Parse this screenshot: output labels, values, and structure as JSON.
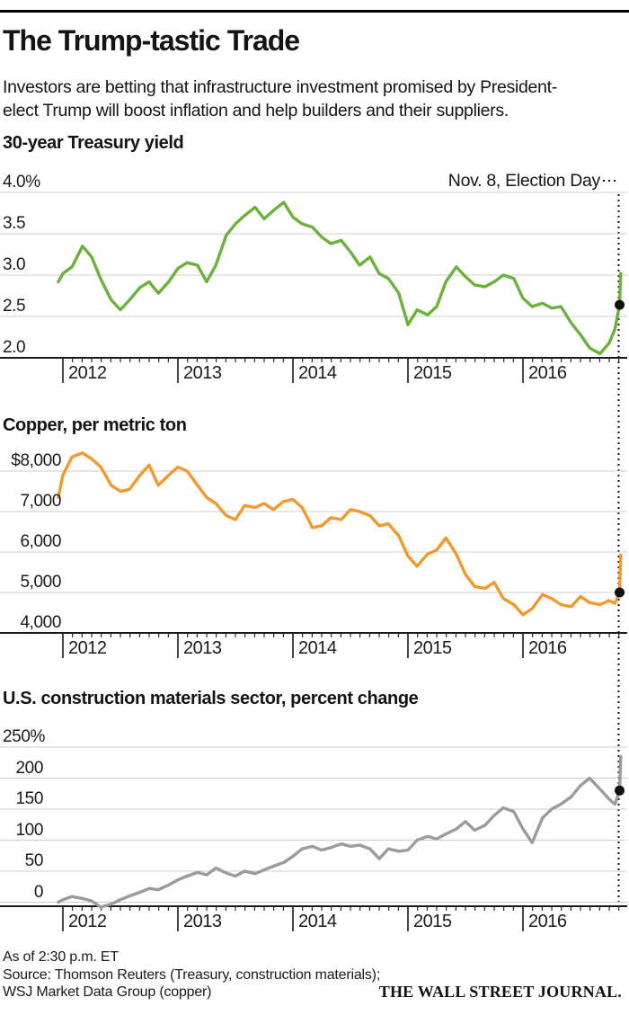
{
  "header": {
    "title": "The Trump-tastic Trade",
    "subtitle_line1": "Investors are betting that infrastructure investment promised by President-",
    "subtitle_line2": "elect Trump will boost inflation and help builders and their suppliers."
  },
  "annotation": {
    "election_label": "Nov. 8, Election Day"
  },
  "footer": {
    "as_of": "As of 2:30 p.m. ET",
    "source_line1": "Source: Thomson Reuters (Treasury, construction materials);",
    "source_line2": "WSJ Market Data Group (copper)",
    "brand": "THE WALL STREET JOURNAL."
  },
  "colors": {
    "treasury_line": "#6bb23c",
    "copper_line": "#f2982d",
    "construction_line": "#9b9b9b",
    "gridline": "#cccccc",
    "axis": "#1a1a1a",
    "dot": "#111111",
    "election_line": "#111111"
  },
  "chart_data": [
    {
      "type": "line",
      "title": "30-year Treasury yield",
      "unit": "percent",
      "color": "#6bb23c",
      "grid": true,
      "ylim": [
        2.0,
        4.0
      ],
      "y_tick_labels": [
        "4.0%",
        "3.5",
        "3.0",
        "2.5",
        "2.0"
      ],
      "y_tick_values": [
        4.0,
        3.5,
        3.0,
        2.5,
        2.0
      ],
      "x_tick_labels": [
        "2012",
        "2013",
        "2014",
        "2015",
        "2016"
      ],
      "x_tick_values": [
        2012,
        2013,
        2014,
        2015,
        2016
      ],
      "x": [
        2011.96,
        2012,
        2012.08,
        2012.17,
        2012.25,
        2012.33,
        2012.42,
        2012.5,
        2012.58,
        2012.67,
        2012.75,
        2012.83,
        2012.92,
        2013,
        2013.08,
        2013.17,
        2013.25,
        2013.33,
        2013.42,
        2013.5,
        2013.58,
        2013.67,
        2013.75,
        2013.83,
        2013.92,
        2014,
        2014.08,
        2014.17,
        2014.25,
        2014.33,
        2014.42,
        2014.5,
        2014.58,
        2014.67,
        2014.75,
        2014.83,
        2014.92,
        2015,
        2015.08,
        2015.17,
        2015.25,
        2015.33,
        2015.42,
        2015.5,
        2015.58,
        2015.67,
        2015.75,
        2015.83,
        2015.92,
        2016,
        2016.08,
        2016.17,
        2016.25,
        2016.33,
        2016.42,
        2016.5,
        2016.58,
        2016.67,
        2016.75,
        2016.8,
        2016.84,
        2016.85
      ],
      "y": [
        2.92,
        3.02,
        3.1,
        3.35,
        3.22,
        2.95,
        2.7,
        2.58,
        2.7,
        2.85,
        2.92,
        2.78,
        2.92,
        3.08,
        3.15,
        3.12,
        2.92,
        3.12,
        3.48,
        3.62,
        3.72,
        3.82,
        3.68,
        3.78,
        3.88,
        3.7,
        3.62,
        3.58,
        3.46,
        3.38,
        3.42,
        3.28,
        3.12,
        3.22,
        3.02,
        2.96,
        2.78,
        2.4,
        2.58,
        2.52,
        2.62,
        2.92,
        3.1,
        2.98,
        2.88,
        2.86,
        2.92,
        3.0,
        2.96,
        2.72,
        2.62,
        2.66,
        2.6,
        2.62,
        2.42,
        2.28,
        2.12,
        2.05,
        2.18,
        2.35,
        2.64,
        3.02
      ],
      "election_day_point": {
        "x": 2016.84,
        "y": 2.64
      }
    },
    {
      "type": "line",
      "title": "Copper, per metric ton",
      "unit": "US dollars",
      "color": "#f2982d",
      "grid": true,
      "ylim": [
        4000,
        8000
      ],
      "y_tick_labels": [
        "$8,000",
        "7,000",
        "6,000",
        "5,000",
        "4,000"
      ],
      "y_tick_values": [
        8000,
        7000,
        6000,
        5000,
        4000
      ],
      "x_tick_labels": [
        "2012",
        "2013",
        "2014",
        "2015",
        "2016"
      ],
      "x_tick_values": [
        2012,
        2013,
        2014,
        2015,
        2016
      ],
      "x": [
        2011.96,
        2012,
        2012.08,
        2012.17,
        2012.25,
        2012.33,
        2012.42,
        2012.5,
        2012.58,
        2012.67,
        2012.75,
        2012.83,
        2012.92,
        2013,
        2013.08,
        2013.17,
        2013.25,
        2013.33,
        2013.42,
        2013.5,
        2013.58,
        2013.67,
        2013.75,
        2013.83,
        2013.92,
        2014,
        2014.08,
        2014.17,
        2014.25,
        2014.33,
        2014.42,
        2014.5,
        2014.58,
        2014.67,
        2014.75,
        2014.83,
        2014.92,
        2015,
        2015.08,
        2015.17,
        2015.25,
        2015.33,
        2015.42,
        2015.5,
        2015.58,
        2015.67,
        2015.75,
        2015.83,
        2015.92,
        2016,
        2016.08,
        2016.17,
        2016.25,
        2016.33,
        2016.42,
        2016.5,
        2016.58,
        2016.67,
        2016.75,
        2016.8,
        2016.84,
        2016.85
      ],
      "y": [
        7350,
        7900,
        8350,
        8450,
        8300,
        8100,
        7650,
        7500,
        7550,
        7900,
        8150,
        7650,
        7900,
        8100,
        8000,
        7650,
        7350,
        7200,
        6900,
        6800,
        7150,
        7100,
        7200,
        7050,
        7250,
        7300,
        7100,
        6600,
        6650,
        6850,
        6800,
        7050,
        7000,
        6900,
        6650,
        6700,
        6400,
        5900,
        5650,
        5950,
        6050,
        6350,
        5950,
        5450,
        5150,
        5100,
        5250,
        4850,
        4700,
        4450,
        4600,
        4950,
        4850,
        4700,
        4650,
        4900,
        4750,
        4700,
        4800,
        4730,
        5000,
        5920
      ],
      "election_day_point": {
        "x": 2016.84,
        "y": 5000
      }
    },
    {
      "type": "line",
      "title": "U.S. construction materials sector, percent change",
      "unit": "percent change",
      "color": "#9b9b9b",
      "grid": true,
      "ylim": [
        -10,
        250
      ],
      "y_tick_labels": [
        "250%",
        "200",
        "150",
        "100",
        "50",
        "0"
      ],
      "y_tick_values": [
        250,
        200,
        150,
        100,
        50,
        0
      ],
      "x_tick_labels": [
        "2012",
        "2013",
        "2014",
        "2015",
        "2016"
      ],
      "x_tick_values": [
        2012,
        2013,
        2014,
        2015,
        2016
      ],
      "x": [
        2011.96,
        2012,
        2012.08,
        2012.17,
        2012.25,
        2012.33,
        2012.42,
        2012.5,
        2012.58,
        2012.67,
        2012.75,
        2012.83,
        2012.92,
        2013,
        2013.08,
        2013.17,
        2013.25,
        2013.33,
        2013.42,
        2013.5,
        2013.58,
        2013.67,
        2013.75,
        2013.83,
        2013.92,
        2014,
        2014.08,
        2014.17,
        2014.25,
        2014.33,
        2014.42,
        2014.5,
        2014.58,
        2014.67,
        2014.75,
        2014.83,
        2014.92,
        2015,
        2015.08,
        2015.17,
        2015.25,
        2015.33,
        2015.42,
        2015.5,
        2015.58,
        2015.67,
        2015.75,
        2015.83,
        2015.92,
        2016,
        2016.08,
        2016.17,
        2016.25,
        2016.33,
        2016.42,
        2016.5,
        2016.58,
        2016.67,
        2016.75,
        2016.8,
        2016.84,
        2016.85
      ],
      "y": [
        0,
        4,
        9,
        6,
        2,
        -8,
        -3,
        4,
        10,
        16,
        22,
        20,
        28,
        36,
        42,
        48,
        44,
        55,
        47,
        42,
        50,
        46,
        52,
        58,
        64,
        74,
        86,
        90,
        84,
        88,
        94,
        90,
        92,
        86,
        70,
        86,
        82,
        84,
        100,
        106,
        102,
        110,
        118,
        130,
        116,
        124,
        140,
        152,
        146,
        118,
        96,
        136,
        150,
        158,
        170,
        188,
        200,
        182,
        166,
        158,
        180,
        235
      ],
      "election_day_point": {
        "x": 2016.84,
        "y": 180
      }
    }
  ]
}
